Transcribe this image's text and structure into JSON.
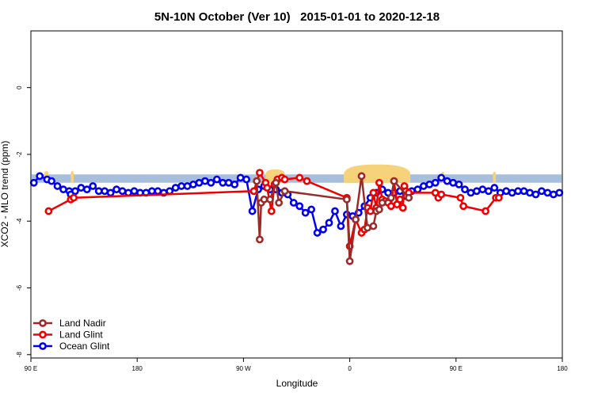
{
  "chart_data": {
    "type": "line",
    "title": "5N-10N October (Ver 10)   2015-01-01 to 2020-12-18",
    "xlabel": "Longitude",
    "ylabel": "XCO2 - MLO trend (ppm)",
    "xlim": [
      90,
      450
    ],
    "ylim": [
      -8.1,
      1.7
    ],
    "x_ticks": [
      {
        "value": 90,
        "label": "90 E"
      },
      {
        "value": 162,
        "label": "180"
      },
      {
        "value": 234,
        "label": "90 W"
      },
      {
        "value": 306,
        "label": "0"
      },
      {
        "value": 378,
        "label": "90 E"
      },
      {
        "value": 450,
        "label": "180"
      }
    ],
    "y_ticks": [
      {
        "value": 0,
        "label": "0"
      },
      {
        "value": -2,
        "label": "-2"
      },
      {
        "value": -4,
        "label": "-4"
      },
      {
        "value": -6,
        "label": "-6"
      },
      {
        "value": -8,
        "label": "-8"
      }
    ],
    "grid": false,
    "legend_position": "bottom-left",
    "background_band": {
      "y_top": -2.6,
      "y_bottom": -2.85,
      "color": "#a8bfdc"
    },
    "land_bumps": [
      {
        "x_start": 302,
        "x_end": 347,
        "height": 0.3
      },
      {
        "x_start": 249,
        "x_end": 262,
        "height": 0.15
      },
      {
        "x_start": 99,
        "x_end": 102,
        "height": 0.1
      },
      {
        "x_start": 117,
        "x_end": 119,
        "height": 0.1
      },
      {
        "x_start": 368,
        "x_end": 370,
        "height": 0.08
      },
      {
        "x_start": 403,
        "x_end": 405,
        "height": 0.08
      }
    ],
    "land_color": "#f6d27a",
    "series": [
      {
        "name": "Ocean Glint",
        "color": "#0000ee",
        "x": [
          92,
          96,
          101,
          104,
          108,
          112,
          116,
          117,
          120,
          124,
          128,
          132,
          136,
          140,
          144,
          148,
          152,
          156,
          160,
          164,
          168,
          172,
          176,
          180,
          184,
          188,
          192,
          196,
          200,
          204,
          208,
          212,
          216,
          220,
          224,
          228,
          232,
          236,
          240,
          244,
          248,
          252,
          256,
          260,
          264,
          268,
          272,
          276,
          280,
          284,
          288,
          292,
          296,
          300,
          304,
          308,
          312,
          316,
          320,
          324,
          328,
          332,
          336,
          340,
          344,
          348,
          352,
          356,
          360,
          364,
          368,
          372,
          376,
          380,
          384,
          388,
          392,
          396,
          400,
          404,
          408,
          412,
          416,
          420,
          424,
          428,
          432,
          436,
          440,
          444,
          448
        ],
        "y": [
          -2.85,
          -2.65,
          -2.75,
          -2.8,
          -2.95,
          -3.05,
          -3.1,
          -3.2,
          -3.1,
          -3.0,
          -3.05,
          -2.95,
          -3.1,
          -3.1,
          -3.15,
          -3.05,
          -3.1,
          -3.15,
          -3.1,
          -3.15,
          -3.15,
          -3.1,
          -3.1,
          -3.15,
          -3.1,
          -3.0,
          -2.95,
          -2.95,
          -2.9,
          -2.85,
          -2.8,
          -2.85,
          -2.75,
          -2.85,
          -2.85,
          -2.9,
          -2.7,
          -2.75,
          -3.7,
          -3.05,
          -2.95,
          -3.05,
          -3.05,
          -3.15,
          -3.2,
          -3.45,
          -3.55,
          -3.75,
          -3.65,
          -4.35,
          -4.25,
          -4.05,
          -3.7,
          -4.15,
          -3.8,
          -3.85,
          -3.75,
          -3.55,
          -3.3,
          -3.15,
          -3.05,
          -3.15,
          -3.15,
          -3.1,
          -3.25,
          -3.1,
          -3.05,
          -2.95,
          -2.9,
          -2.85,
          -2.7,
          -2.8,
          -2.85,
          -2.9,
          -3.05,
          -3.15,
          -3.1,
          -3.05,
          -3.1,
          -3.0,
          -3.15,
          -3.1,
          -3.15,
          -3.1,
          -3.1,
          -3.15,
          -3.2,
          -3.1,
          -3.15,
          -3.2,
          -3.15
        ]
      },
      {
        "name": "Land Glint",
        "color": "#ee0000",
        "x": [
          102,
          117,
          119,
          241,
          245,
          249,
          250,
          253,
          255,
          257,
          260,
          262,
          272,
          277,
          304,
          306,
          310,
          314,
          316,
          318,
          320,
          322,
          324,
          326,
          328,
          330,
          332,
          334,
          336,
          338,
          340,
          342,
          343,
          344,
          346,
          364,
          366,
          368,
          381,
          383,
          398,
          405,
          407
        ],
        "y": [
          -3.7,
          -3.35,
          -3.3,
          -3.1,
          -2.55,
          -2.85,
          -3.0,
          -3.7,
          -2.9,
          -2.75,
          -2.7,
          -2.75,
          -2.7,
          -2.8,
          -3.3,
          -4.75,
          -3.95,
          -4.35,
          -4.25,
          -3.6,
          -3.7,
          -3.15,
          -3.6,
          -2.85,
          -3.35,
          -3.4,
          -3.45,
          -3.55,
          -2.8,
          -3.5,
          -3.35,
          -3.6,
          -2.95,
          -3.1,
          -3.15,
          -3.15,
          -3.3,
          -3.2,
          -3.3,
          -3.55,
          -3.7,
          -3.3,
          -3.3
        ]
      },
      {
        "name": "Land Nadir",
        "color": "#9b2b2b",
        "x": [
          243,
          245,
          246,
          248,
          252,
          256,
          258,
          262,
          304,
          306,
          310,
          314,
          318,
          322,
          324,
          326,
          328,
          334,
          336,
          346
        ],
        "y": [
          -2.8,
          -4.55,
          -3.45,
          -3.35,
          -3.35,
          -2.85,
          -3.45,
          -3.1,
          -3.35,
          -5.2,
          -3.95,
          -2.65,
          -4.2,
          -4.15,
          -3.7,
          -3.65,
          -3.45,
          -3.3,
          -2.8,
          -3.3
        ]
      }
    ],
    "legend_order": [
      "Land Nadir",
      "Land Glint",
      "Ocean Glint"
    ]
  }
}
